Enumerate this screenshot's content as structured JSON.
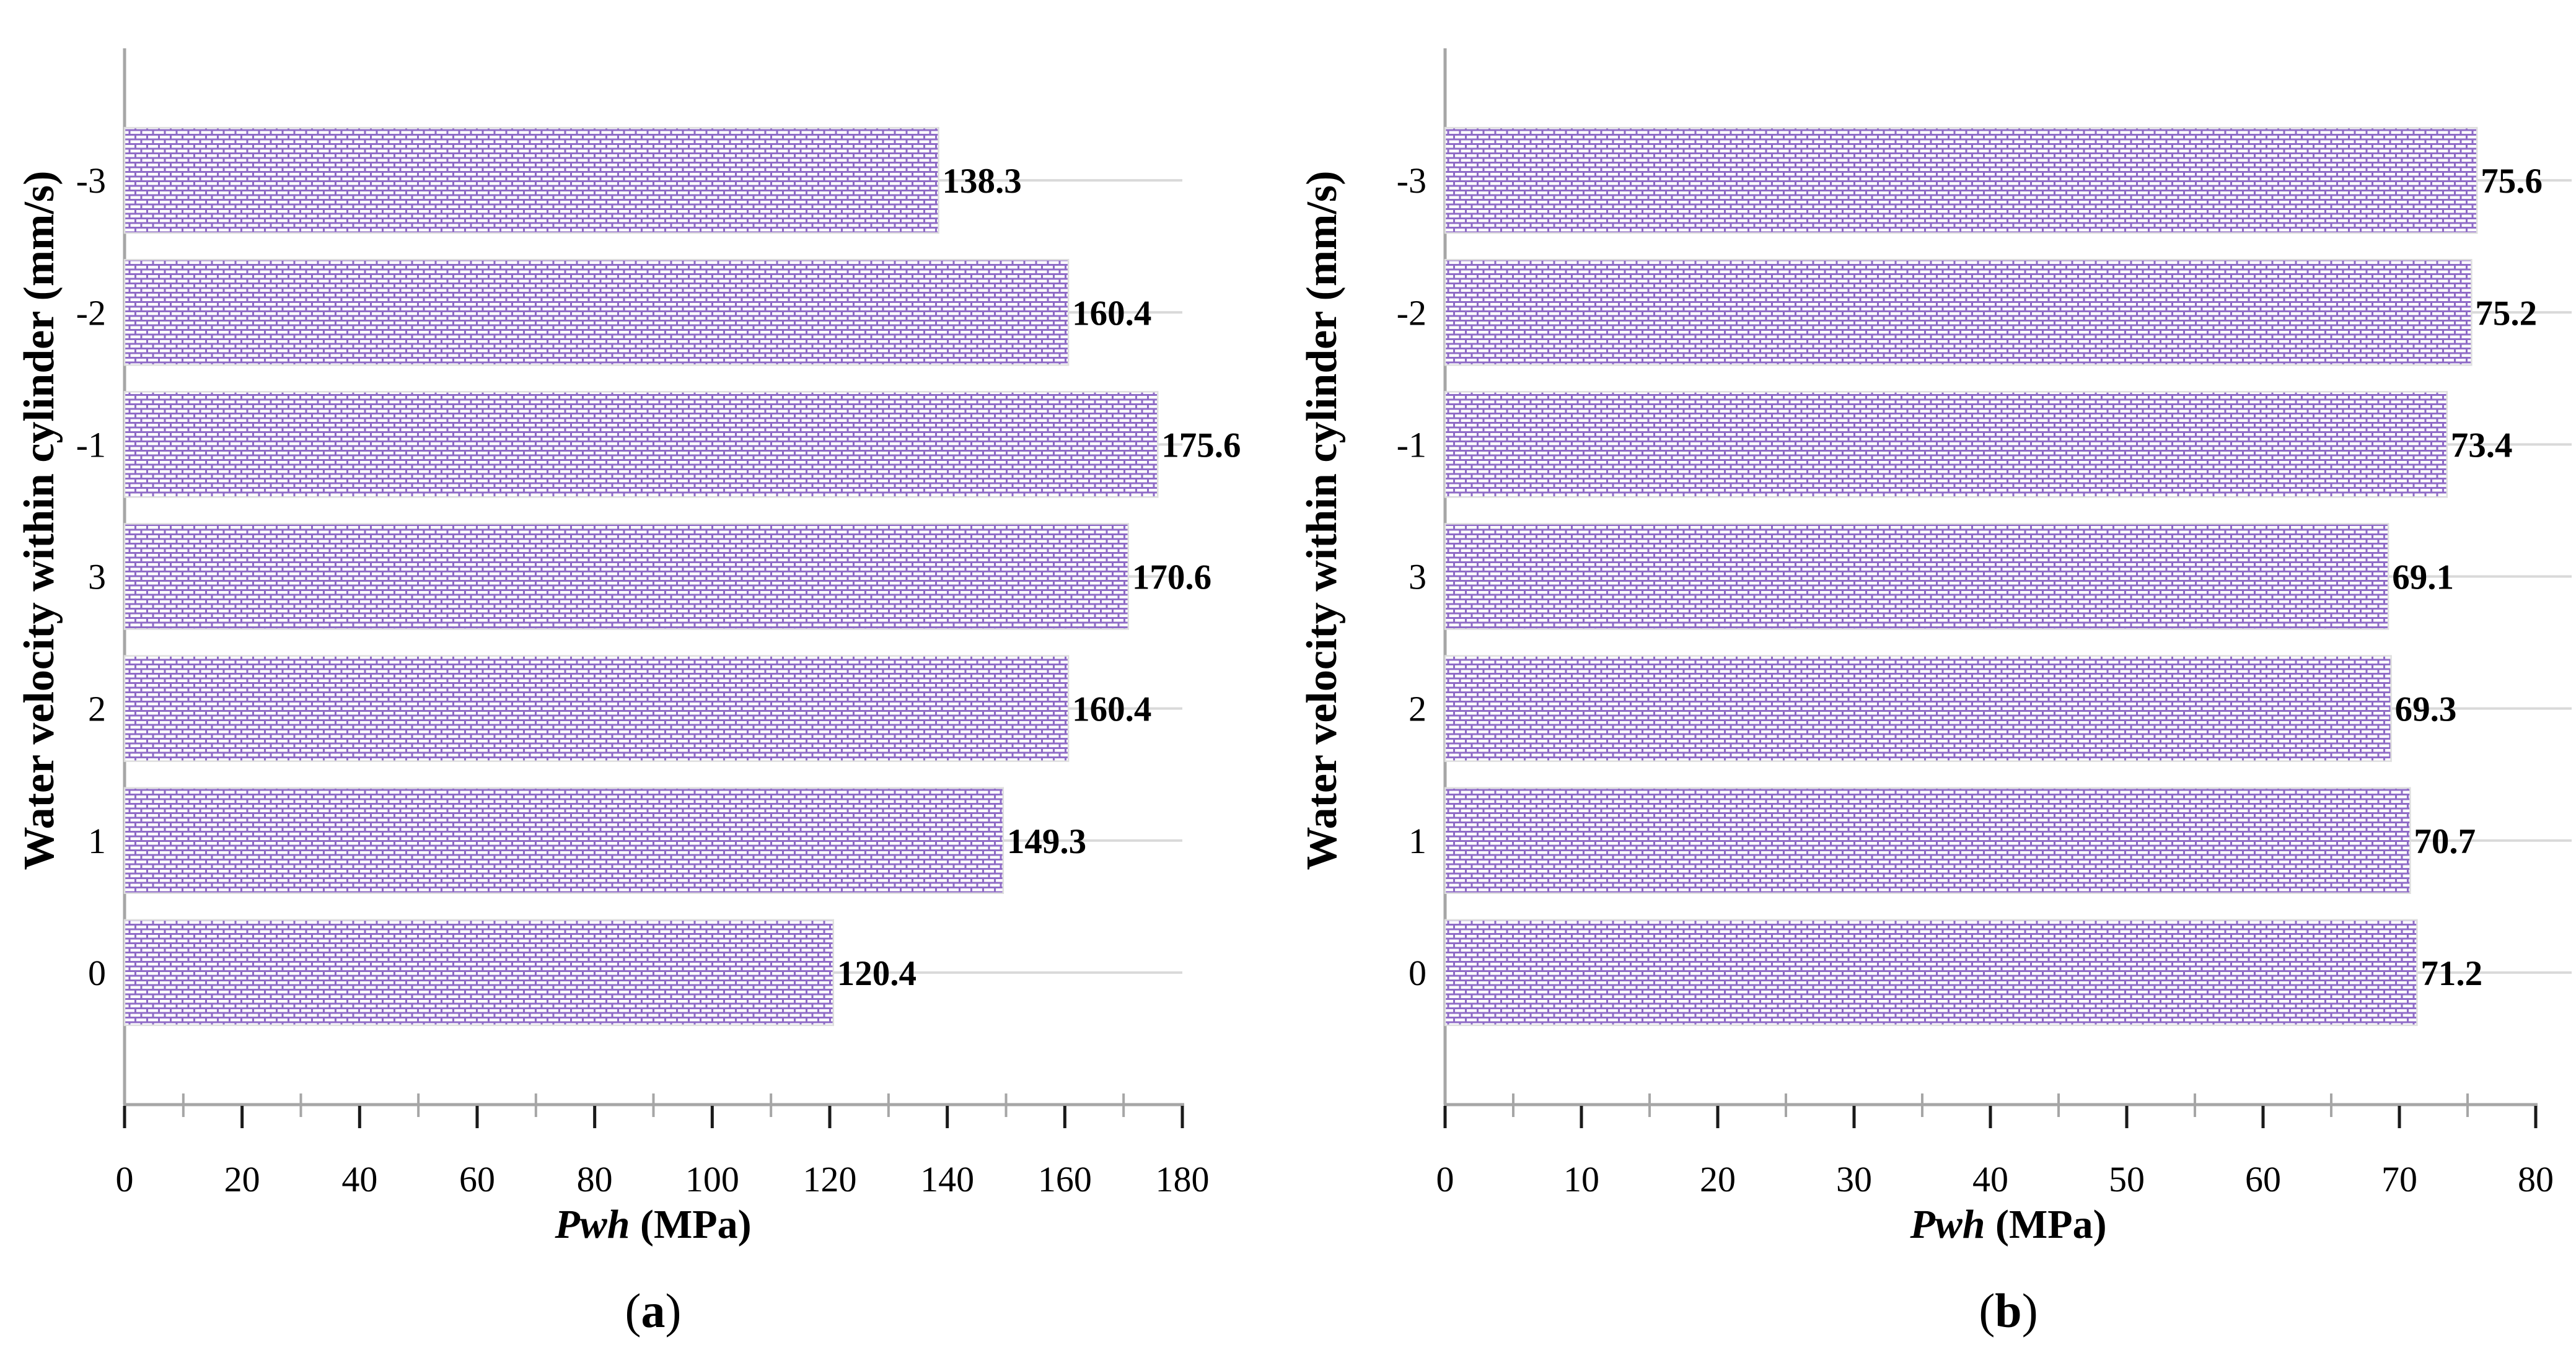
{
  "figure": {
    "description": "Two horizontal bar charts of wellhead pressure Pwh (MPa) versus water velocity within cylinder (mm/s)",
    "colors": {
      "background": "#ffffff",
      "bar_fill": "#ffffff",
      "bar_pattern_stroke": "#8e6bc6",
      "bar_border": "#dedede",
      "gridline": "#d9d9d9",
      "axis_line": "#a6a6a6",
      "minor_tick": "#a6a6a6",
      "major_tick": "#1a1a1a",
      "text": "#000000"
    }
  },
  "chart_data": [
    {
      "id": "a",
      "type": "bar",
      "orientation": "horizontal",
      "panel_label": "(a)",
      "ylabel": "Water velocity within cylinder (mm/s)",
      "xlabel_variable": "Pwh",
      "xlabel_unit": " (MPa)",
      "categories": [
        "-3",
        "-2",
        "-1",
        "3",
        "2",
        "1",
        "0"
      ],
      "values": [
        138.3,
        160.4,
        175.6,
        170.6,
        160.4,
        149.3,
        120.4
      ],
      "data_labels": [
        "138.3",
        "160.4",
        "175.6",
        "170.6",
        "160.4",
        "149.3",
        "120.4"
      ],
      "xlim": [
        0,
        180
      ],
      "x_major_step": 20,
      "x_minor_step": 10,
      "x_tick_labels": [
        "0",
        "20",
        "40",
        "60",
        "80",
        "100",
        "120",
        "140",
        "160",
        "180"
      ],
      "grid": "horizontal-category-lines",
      "legend": "none",
      "bar_pattern": "purple-brick-hatch"
    },
    {
      "id": "b",
      "type": "bar",
      "orientation": "horizontal",
      "panel_label": "(b)",
      "ylabel": "Water velocity within cylinder (mm/s)",
      "xlabel_variable": "Pwh",
      "xlabel_unit": " (MPa)",
      "categories": [
        "-3",
        "-2",
        "-1",
        "3",
        "2",
        "1",
        "0"
      ],
      "values": [
        75.6,
        75.2,
        73.4,
        69.1,
        69.3,
        70.7,
        71.2
      ],
      "data_labels": [
        "75.6",
        "75.2",
        "73.4",
        "69.1",
        "69.3",
        "70.7",
        "71.2"
      ],
      "xlim": [
        0,
        80
      ],
      "x_major_step": 10,
      "x_minor_step": 5,
      "x_tick_labels": [
        "0",
        "10",
        "20",
        "30",
        "40",
        "50",
        "60",
        "70",
        "80"
      ],
      "grid": "horizontal-category-lines",
      "legend": "none",
      "bar_pattern": "purple-brick-hatch"
    }
  ]
}
